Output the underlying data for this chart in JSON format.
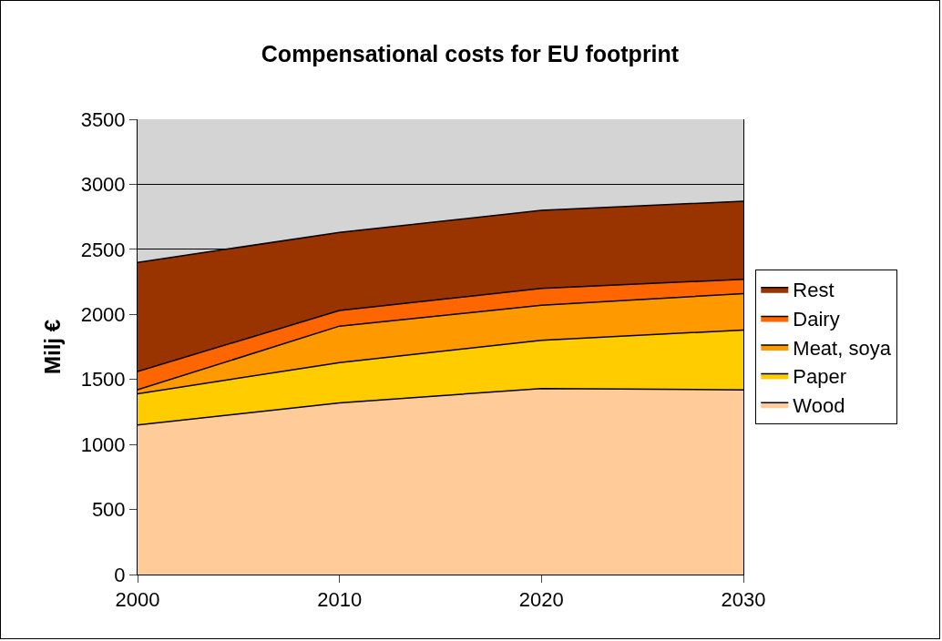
{
  "chart_data": {
    "type": "area",
    "title": "Compensational costs for EU footprint",
    "ylabel": "Milj €",
    "x": [
      2000,
      2010,
      2020,
      2030
    ],
    "stacked": true,
    "series": [
      {
        "name": "Wood",
        "color": "#ffcc99",
        "values": [
          1150,
          1320,
          1430,
          1420
        ]
      },
      {
        "name": "Paper",
        "color": "#ffcc00",
        "values": [
          240,
          310,
          370,
          460
        ]
      },
      {
        "name": "Meat, soya",
        "color": "#ff9900",
        "values": [
          30,
          280,
          270,
          280
        ]
      },
      {
        "name": "Dairy",
        "color": "#ff6600",
        "values": [
          140,
          120,
          130,
          110
        ]
      },
      {
        "name": "Rest",
        "color": "#993300",
        "values": [
          840,
          600,
          600,
          600
        ]
      }
    ],
    "xlim": [
      2000,
      2030
    ],
    "xticks": [
      2000,
      2010,
      2020,
      2030
    ],
    "ylim": [
      0,
      3500
    ],
    "yticks": [
      0,
      500,
      1000,
      1500,
      2000,
      2500,
      3000,
      3500
    ],
    "grid": "y",
    "legend": "right"
  }
}
